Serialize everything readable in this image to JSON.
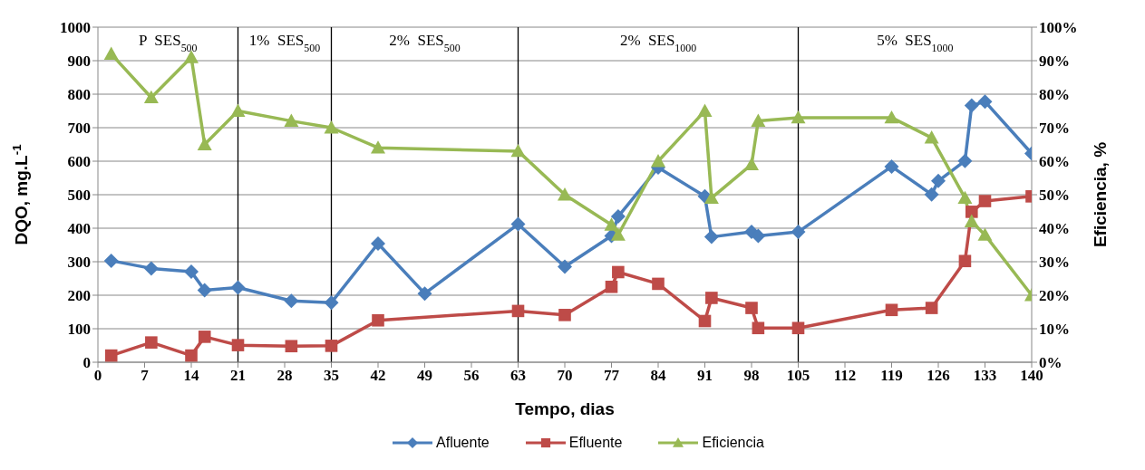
{
  "chart_data": {
    "type": "line",
    "xlabel": "Tempo, dias",
    "ylabel": "DQO, mg.L$^{-1}$",
    "y2label": "Eficiencia, %",
    "xlim": [
      0,
      140
    ],
    "xticks": [
      0,
      7,
      14,
      21,
      28,
      35,
      42,
      49,
      56,
      63,
      70,
      77,
      84,
      91,
      98,
      105,
      112,
      119,
      126,
      133,
      140
    ],
    "ylim": [
      0,
      1000
    ],
    "yticks": [
      0,
      100,
      200,
      300,
      400,
      500,
      600,
      700,
      800,
      900,
      1000
    ],
    "y2lim": [
      0,
      100
    ],
    "y2ticks": [
      {
        "value": 0,
        "label": "0%"
      },
      {
        "value": 10,
        "label": "10%"
      },
      {
        "value": 20,
        "label": "20%"
      },
      {
        "value": 30,
        "label": "30%"
      },
      {
        "value": 40,
        "label": "40%"
      },
      {
        "value": 50,
        "label": "50%"
      },
      {
        "value": 60,
        "label": "60%"
      },
      {
        "value": 70,
        "label": "70%"
      },
      {
        "value": 80,
        "label": "80%"
      },
      {
        "value": 90,
        "label": "90%"
      },
      {
        "value": 100,
        "label": "100%"
      }
    ],
    "grid": "y",
    "legend": "bottom",
    "series": [
      {
        "name": "Afluente",
        "color": "#4a7ebb",
        "marker": "diamond",
        "x": [
          2,
          8,
          14,
          16,
          21,
          29,
          35,
          42,
          49,
          63,
          70,
          77,
          78,
          84,
          91,
          92,
          98,
          99,
          105,
          119,
          125,
          126,
          130,
          131,
          133,
          140
        ],
        "values": [
          303,
          280,
          270,
          215,
          223,
          183,
          178,
          354,
          205,
          412,
          285,
          377,
          435,
          581,
          495,
          374,
          389,
          377,
          389,
          584,
          501,
          541,
          601,
          766,
          778,
          623
        ]
      },
      {
        "name": "Efluente",
        "color": "#be4b48",
        "marker": "square",
        "x": [
          2,
          8,
          14,
          16,
          21,
          29,
          35,
          42,
          63,
          70,
          77,
          78,
          84,
          91,
          92,
          98,
          99,
          105,
          119,
          125,
          130,
          131,
          133,
          140
        ],
        "values": [
          20,
          59,
          20,
          76,
          51,
          48,
          49,
          125,
          153,
          141,
          225,
          269,
          234,
          123,
          192,
          162,
          102,
          102,
          156,
          162,
          302,
          449,
          481,
          495
        ]
      },
      {
        "name": "Eficiencia",
        "color": "#98b954",
        "marker": "triangle",
        "axis": "y2",
        "x": [
          2,
          8,
          14,
          16,
          21,
          29,
          35,
          42,
          63,
          70,
          77,
          78,
          84,
          91,
          92,
          98,
          99,
          105,
          119,
          125,
          130,
          131,
          133,
          140
        ],
        "values": [
          92,
          79,
          91,
          65,
          75,
          72,
          70,
          64,
          63,
          50,
          41,
          38,
          60,
          75,
          49,
          59,
          72,
          73,
          73,
          67,
          49,
          42,
          38,
          20
        ]
      }
    ],
    "ref_lines": [
      {
        "axis": "x",
        "value": 21,
        "color": "#000000"
      },
      {
        "axis": "x",
        "value": 35,
        "color": "#000000"
      },
      {
        "axis": "x",
        "value": 63,
        "color": "#000000"
      },
      {
        "axis": "x",
        "value": 105,
        "color": "#000000"
      }
    ],
    "annotations": [
      "P  SES$_{500}$",
      "1%  SES$_{500}$",
      "2%  SES$_{500}$",
      "2%  SES$_{1000}$",
      "5%  SES$_{1000}$"
    ]
  }
}
